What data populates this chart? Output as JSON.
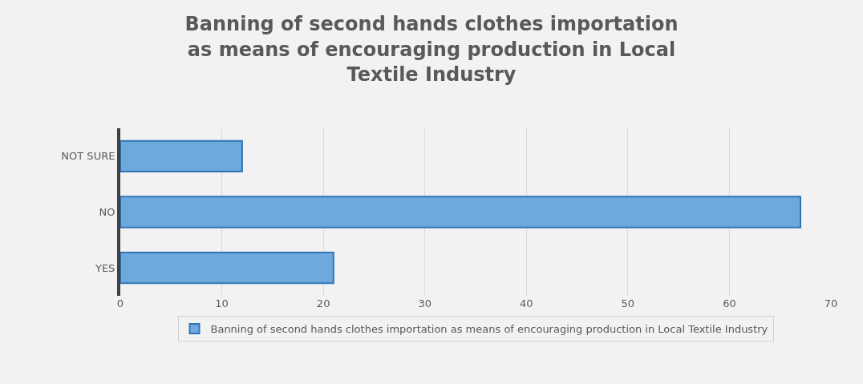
{
  "chart_data": {
    "type": "bar",
    "orientation": "horizontal",
    "title": "Banning of second hands clothes importation as means of encouraging production in Local Textile Industry",
    "categories": [
      "NOT SURE",
      "NO",
      "YES"
    ],
    "series": [
      {
        "name": "Banning of second hands clothes importation as means of encouraging production in Local Textile Industry",
        "color": "#6fa8dc",
        "values": [
          12,
          67,
          21
        ]
      }
    ],
    "xlim": [
      0,
      70
    ],
    "xticks": [
      0,
      10,
      20,
      30,
      40,
      50,
      60,
      70
    ],
    "grid": "x",
    "legend": "bottom"
  }
}
